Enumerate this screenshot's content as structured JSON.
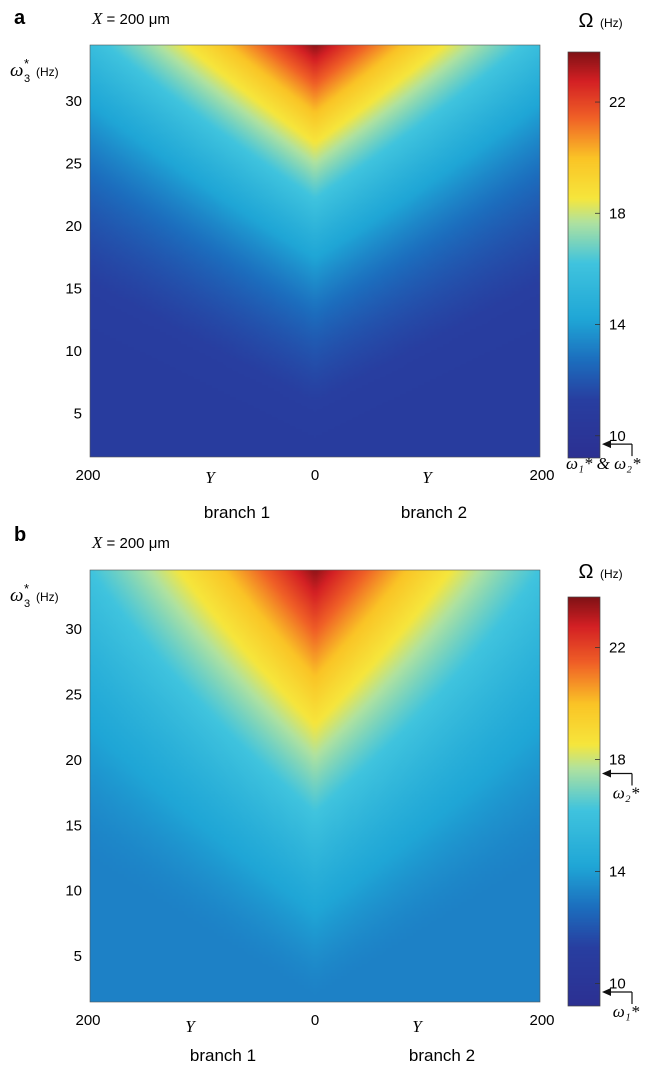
{
  "chart_data": [
    {
      "type": "heatmap",
      "panel_label": "a",
      "header": {
        "var": "X",
        "eq": " = ",
        "value": "200 μm"
      },
      "ylabel": {
        "symbol": "ω",
        "sub": "3",
        "sup": "*",
        "unit": "(Hz)"
      },
      "y_ticks": [
        "5",
        "10",
        "15",
        "20",
        "25",
        "30"
      ],
      "ylim": [
        1.5,
        34.5
      ],
      "x_ticks": [
        "200",
        "0",
        "200"
      ],
      "x_var_labels": [
        "Y",
        "Y"
      ],
      "branch_labels": [
        "branch 1",
        "branch 2"
      ],
      "x_domain": [
        -200,
        200
      ],
      "colorbar": {
        "title_symbol": "Ω",
        "title_unit": "(Hz)",
        "ticks": [
          "10",
          "14",
          "18",
          "22"
        ],
        "range": [
          9.2,
          23.8
        ],
        "arrows": [
          {
            "value": 9.7,
            "label": "ω₁* & ω₂*"
          }
        ]
      },
      "surface": {
        "floor": 11,
        "peak": 23.6,
        "edge_value": 19.5,
        "v_sharpness": 0.75,
        "curve": 1.9
      }
    },
    {
      "type": "heatmap",
      "panel_label": "b",
      "header": {
        "var": "X",
        "eq": " = ",
        "value": "200 μm"
      },
      "ylabel": {
        "symbol": "ω",
        "sub": "3",
        "sup": "*",
        "unit": "(Hz)"
      },
      "y_ticks": [
        "5",
        "10",
        "15",
        "20",
        "25",
        "30"
      ],
      "ylim": [
        1.5,
        34.5
      ],
      "x_ticks": [
        "200",
        "0",
        "200"
      ],
      "x_var_labels": [
        "Y",
        "Y"
      ],
      "branch_labels": [
        "branch 1",
        "branch 2"
      ],
      "x_domain": [
        -200,
        200
      ],
      "colorbar": {
        "title_symbol": "Ω",
        "title_unit": "(Hz)",
        "ticks": [
          "10",
          "14",
          "18",
          "22"
        ],
        "range": [
          9.2,
          23.8
        ],
        "arrows": [
          {
            "value": 17.5,
            "label": "ω₂*"
          },
          {
            "value": 9.7,
            "label": "ω₁*"
          }
        ]
      },
      "surface": {
        "floor": 13.2,
        "peak": 23.6,
        "edge_value": 18.5,
        "v_sharpness": 0.9,
        "curve": 1.5
      }
    }
  ]
}
